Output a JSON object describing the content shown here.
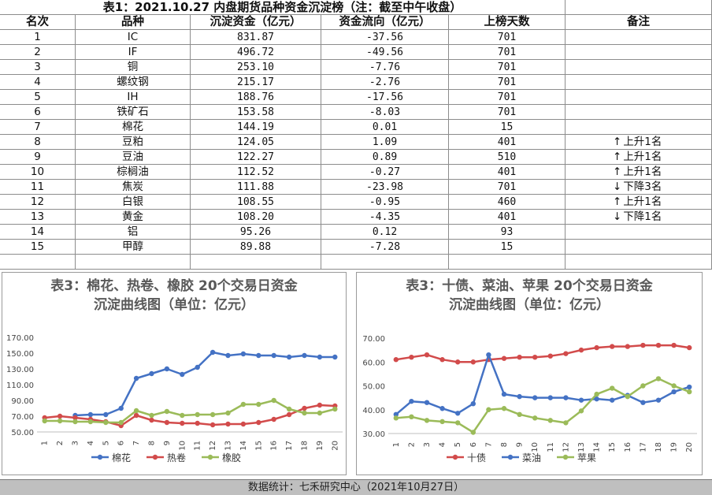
{
  "table": {
    "title": "表1：2021.10.27 内盘期货品种资金沉淀榜（注：截至中午收盘）",
    "headers": [
      "名次",
      "品种",
      "沉淀资金（亿元）",
      "资金流向（亿元）",
      "上榜天数",
      "备注"
    ],
    "rows": [
      {
        "rank": "1",
        "name": "IC",
        "amount": "831.87",
        "flow": "-37.56",
        "days": "701",
        "arrow": "",
        "note": ""
      },
      {
        "rank": "2",
        "name": "IF",
        "amount": "496.72",
        "flow": "-49.56",
        "days": "701",
        "arrow": "",
        "note": ""
      },
      {
        "rank": "3",
        "name": "铜",
        "amount": "253.10",
        "flow": "-7.76",
        "days": "701",
        "arrow": "",
        "note": ""
      },
      {
        "rank": "4",
        "name": "螺纹钢",
        "amount": "215.17",
        "flow": "-2.76",
        "days": "701",
        "arrow": "",
        "note": ""
      },
      {
        "rank": "5",
        "name": "IH",
        "amount": "188.76",
        "flow": "-17.56",
        "days": "701",
        "arrow": "",
        "note": ""
      },
      {
        "rank": "6",
        "name": "铁矿石",
        "amount": "153.58",
        "flow": "-8.03",
        "days": "701",
        "arrow": "",
        "note": ""
      },
      {
        "rank": "7",
        "name": "棉花",
        "amount": "144.19",
        "flow": "0.01",
        "days": "15",
        "arrow": "",
        "note": ""
      },
      {
        "rank": "8",
        "name": "豆粕",
        "amount": "124.05",
        "flow": "1.09",
        "days": "401",
        "arrow": "↑",
        "note": "上升1名"
      },
      {
        "rank": "9",
        "name": "豆油",
        "amount": "122.27",
        "flow": "0.89",
        "days": "510",
        "arrow": "↑",
        "note": "上升1名"
      },
      {
        "rank": "10",
        "name": "棕榈油",
        "amount": "112.52",
        "flow": "-0.27",
        "days": "401",
        "arrow": "↑",
        "note": "上升1名"
      },
      {
        "rank": "11",
        "name": "焦炭",
        "amount": "111.88",
        "flow": "-23.98",
        "days": "701",
        "arrow": "↓",
        "note": "下降3名"
      },
      {
        "rank": "12",
        "name": "白银",
        "amount": "108.55",
        "flow": "-0.95",
        "days": "460",
        "arrow": "↑",
        "note": "上升1名"
      },
      {
        "rank": "13",
        "name": "黄金",
        "amount": "108.20",
        "flow": "-4.35",
        "days": "401",
        "arrow": "↓",
        "note": "下降1名"
      },
      {
        "rank": "14",
        "name": "铝",
        "amount": "95.26",
        "flow": "0.12",
        "days": "93",
        "arrow": "",
        "note": ""
      },
      {
        "rank": "15",
        "name": "甲醇",
        "amount": "89.88",
        "flow": "-7.28",
        "days": "15",
        "arrow": "",
        "note": ""
      }
    ]
  },
  "footer": "数据统计：七禾研究中心（2021年10月27日）",
  "chart_data": [
    {
      "type": "line",
      "title": "表3：棉花、热卷、橡胶 20个交易日资金沉淀曲线图（单位：亿元）",
      "title_lines": [
        "表3：棉花、热卷、橡胶 20个交易日资金",
        "沉淀曲线图（单位：亿元）"
      ],
      "x": [
        "1",
        "2",
        "3",
        "4",
        "5",
        "6",
        "7",
        "8",
        "9",
        "10",
        "11",
        "12",
        "13",
        "14",
        "15",
        "16",
        "17",
        "18",
        "19",
        "20"
      ],
      "ylim": [
        50,
        170
      ],
      "yticks": [
        "50.00",
        "70.00",
        "90.00",
        "110.00",
        "130.00",
        "150.00",
        "170.00"
      ],
      "series": [
        {
          "name": "棉花",
          "color": "#4472C4",
          "values": [
            null,
            null,
            71,
            72,
            72,
            80,
            118,
            124,
            130,
            123,
            132,
            151,
            147,
            149,
            147,
            147,
            145,
            147,
            145,
            145
          ]
        },
        {
          "name": "热卷",
          "color": "#D24B4B",
          "values": [
            68,
            70,
            68,
            66,
            63,
            58,
            71,
            65,
            62,
            61,
            61,
            59,
            60,
            60,
            62,
            66,
            72,
            80,
            84,
            83
          ]
        },
        {
          "name": "橡胶",
          "color": "#9BBB59",
          "values": [
            64,
            64,
            63,
            63,
            62,
            62,
            77,
            71,
            76,
            71,
            72,
            72,
            74,
            85,
            85,
            90,
            79,
            74,
            74,
            79
          ]
        }
      ],
      "legend": "bottom",
      "grid": false
    },
    {
      "type": "line",
      "title": "表3：十债、菜油、苹果 20个交易日资金沉淀曲线图（单位：亿元）",
      "title_lines": [
        "表3：十债、菜油、苹果 20个交易日资金",
        "沉淀曲线图（单位：亿元）"
      ],
      "x": [
        "1",
        "2",
        "3",
        "4",
        "5",
        "6",
        "7",
        "8",
        "9",
        "10",
        "11",
        "12",
        "13",
        "14",
        "15",
        "16",
        "17",
        "18",
        "19",
        "20"
      ],
      "ylim": [
        30,
        70
      ],
      "yticks": [
        "30.00",
        "40.00",
        "50.00",
        "60.00",
        "70.00"
      ],
      "series": [
        {
          "name": "十债",
          "color": "#D24B4B",
          "values": [
            61,
            62,
            63,
            61,
            60,
            60,
            61,
            61.5,
            62,
            62,
            62.5,
            63.5,
            65,
            66,
            66.5,
            66.5,
            67,
            67,
            67,
            66
          ]
        },
        {
          "name": "菜油",
          "color": "#4472C4",
          "values": [
            38,
            43.5,
            43,
            40.5,
            38.5,
            42.5,
            63,
            46.5,
            45.5,
            45,
            45,
            45,
            44,
            44.5,
            44,
            46,
            43,
            44,
            47.5,
            49.5
          ]
        },
        {
          "name": "苹果",
          "color": "#9BBB59",
          "values": [
            36.5,
            37,
            35.5,
            35,
            34.5,
            30.5,
            40,
            40.5,
            38,
            36.5,
            35.5,
            34.5,
            39.5,
            46.5,
            49,
            45.5,
            50,
            53,
            50,
            47.5
          ]
        }
      ],
      "legend": "bottom",
      "grid": false
    }
  ]
}
